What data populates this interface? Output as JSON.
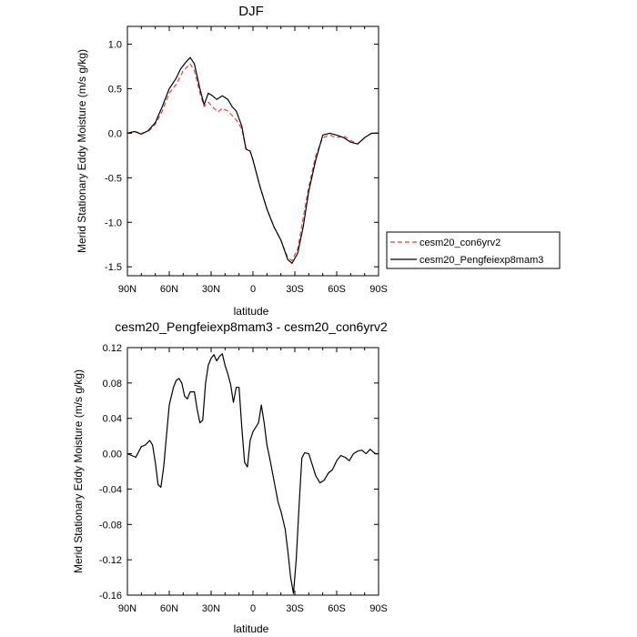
{
  "chart_data": [
    {
      "type": "line",
      "title": "DJF",
      "xlabel": "latitude",
      "ylabel": "Merid Stationary Eddy Moisture (m/s g/kg)",
      "xlim": [
        90,
        -90
      ],
      "ylim": [
        -1.6,
        1.2
      ],
      "xticks": [
        90,
        60,
        30,
        0,
        -30,
        -60,
        -90
      ],
      "xtick_labels": [
        "90N",
        "60N",
        "30N",
        "0",
        "30S",
        "60S",
        "90S"
      ],
      "yticks": [
        -1.5,
        -1.0,
        -0.5,
        0.0,
        0.5,
        1.0
      ],
      "ytick_labels": [
        "-1.5",
        "-1.0",
        "-0.5",
        "0.0",
        "0.5",
        "1.0"
      ],
      "grid": false,
      "legend": "right",
      "series": [
        {
          "name": "cesm20_con6yrv2",
          "color": "#e8413a",
          "dash": "dashed",
          "points": [
            [
              90,
              0.0
            ],
            [
              85,
              0.02
            ],
            [
              80,
              0.0
            ],
            [
              75,
              0.02
            ],
            [
              70,
              0.1
            ],
            [
              65,
              0.25
            ],
            [
              60,
              0.45
            ],
            [
              55,
              0.55
            ],
            [
              50,
              0.7
            ],
            [
              45,
              0.78
            ],
            [
              42,
              0.7
            ],
            [
              38,
              0.45
            ],
            [
              35,
              0.3
            ],
            [
              32,
              0.35
            ],
            [
              28,
              0.28
            ],
            [
              25,
              0.24
            ],
            [
              22,
              0.28
            ],
            [
              18,
              0.25
            ],
            [
              15,
              0.2
            ],
            [
              12,
              0.15
            ],
            [
              8,
              0.05
            ],
            [
              5,
              -0.17
            ],
            [
              2,
              -0.2
            ],
            [
              0,
              -0.3
            ],
            [
              -5,
              -0.6
            ],
            [
              -10,
              -0.85
            ],
            [
              -15,
              -1.05
            ],
            [
              -20,
              -1.2
            ],
            [
              -25,
              -1.4
            ],
            [
              -28,
              -1.43
            ],
            [
              -32,
              -1.3
            ],
            [
              -36,
              -0.95
            ],
            [
              -40,
              -0.6
            ],
            [
              -45,
              -0.25
            ],
            [
              -50,
              -0.05
            ],
            [
              -55,
              -0.02
            ],
            [
              -60,
              -0.05
            ],
            [
              -65,
              -0.03
            ],
            [
              -70,
              -0.08
            ],
            [
              -75,
              -0.12
            ],
            [
              -80,
              -0.05
            ],
            [
              -85,
              0.0
            ],
            [
              -90,
              0.0
            ]
          ]
        },
        {
          "name": "cesm20_Pengfeiexp8mam3",
          "color": "#000000",
          "dash": "solid",
          "points": [
            [
              90,
              0.0
            ],
            [
              85,
              0.02
            ],
            [
              80,
              -0.01
            ],
            [
              75,
              0.03
            ],
            [
              70,
              0.12
            ],
            [
              65,
              0.3
            ],
            [
              60,
              0.5
            ],
            [
              55,
              0.62
            ],
            [
              52,
              0.72
            ],
            [
              48,
              0.8
            ],
            [
              45,
              0.85
            ],
            [
              42,
              0.78
            ],
            [
              38,
              0.5
            ],
            [
              35,
              0.32
            ],
            [
              32,
              0.45
            ],
            [
              29,
              0.42
            ],
            [
              26,
              0.38
            ],
            [
              22,
              0.42
            ],
            [
              18,
              0.38
            ],
            [
              15,
              0.3
            ],
            [
              12,
              0.25
            ],
            [
              8,
              0.08
            ],
            [
              5,
              -0.18
            ],
            [
              2,
              -0.2
            ],
            [
              0,
              -0.3
            ],
            [
              -5,
              -0.6
            ],
            [
              -10,
              -0.85
            ],
            [
              -15,
              -1.05
            ],
            [
              -20,
              -1.2
            ],
            [
              -25,
              -1.42
            ],
            [
              -28,
              -1.46
            ],
            [
              -32,
              -1.35
            ],
            [
              -36,
              -1.05
            ],
            [
              -40,
              -0.65
            ],
            [
              -45,
              -0.3
            ],
            [
              -50,
              -0.02
            ],
            [
              -55,
              0.0
            ],
            [
              -60,
              -0.02
            ],
            [
              -65,
              -0.05
            ],
            [
              -70,
              -0.1
            ],
            [
              -75,
              -0.12
            ],
            [
              -80,
              -0.05
            ],
            [
              -85,
              0.0
            ],
            [
              -90,
              0.0
            ]
          ]
        }
      ]
    },
    {
      "type": "line",
      "title": "cesm20_Pengfeiexp8mam3 - cesm20_con6yrv2",
      "xlabel": "latitude",
      "ylabel": "Merid Stationary Eddy Moisture (m/s g/kg)",
      "xlim": [
        90,
        -90
      ],
      "ylim": [
        -0.16,
        0.12
      ],
      "xticks": [
        90,
        60,
        30,
        0,
        -30,
        -60,
        -90
      ],
      "xtick_labels": [
        "90N",
        "60N",
        "30N",
        "0",
        "30S",
        "60S",
        "90S"
      ],
      "yticks": [
        -0.16,
        -0.12,
        -0.08,
        -0.04,
        0.0,
        0.04,
        0.08,
        0.12
      ],
      "ytick_labels": [
        "-0.16",
        "-0.12",
        "-0.08",
        "-0.04",
        "0.00",
        "0.04",
        "0.08",
        "0.12"
      ],
      "grid": false,
      "series": [
        {
          "name": "",
          "color": "#000000",
          "dash": "solid",
          "points": [
            [
              90,
              0.0
            ],
            [
              87,
              -0.002
            ],
            [
              84,
              -0.004
            ],
            [
              80,
              0.008
            ],
            [
              77,
              0.01
            ],
            [
              74,
              0.015
            ],
            [
              72,
              0.01
            ],
            [
              70,
              -0.01
            ],
            [
              68,
              -0.035
            ],
            [
              66,
              -0.038
            ],
            [
              64,
              -0.015
            ],
            [
              62,
              0.02
            ],
            [
              60,
              0.055
            ],
            [
              57,
              0.075
            ],
            [
              55,
              0.083
            ],
            [
              53,
              0.085
            ],
            [
              51,
              0.08
            ],
            [
              49,
              0.065
            ],
            [
              47,
              0.062
            ],
            [
              45,
              0.07
            ],
            [
              42,
              0.07
            ],
            [
              40,
              0.05
            ],
            [
              38,
              0.035
            ],
            [
              36,
              0.038
            ],
            [
              34,
              0.08
            ],
            [
              32,
              0.1
            ],
            [
              30,
              0.108
            ],
            [
              28,
              0.112
            ],
            [
              26,
              0.105
            ],
            [
              24,
              0.11
            ],
            [
              22,
              0.113
            ],
            [
              20,
              0.1
            ],
            [
              18,
              0.09
            ],
            [
              16,
              0.078
            ],
            [
              14,
              0.058
            ],
            [
              12,
              0.075
            ],
            [
              10,
              0.075
            ],
            [
              8,
              0.03
            ],
            [
              6,
              -0.01
            ],
            [
              4,
              -0.015
            ],
            [
              2,
              0.015
            ],
            [
              0,
              0.025
            ],
            [
              -2,
              0.03
            ],
            [
              -4,
              0.035
            ],
            [
              -6,
              0.055
            ],
            [
              -8,
              0.035
            ],
            [
              -10,
              0.01
            ],
            [
              -12,
              -0.005
            ],
            [
              -15,
              -0.03
            ],
            [
              -18,
              -0.055
            ],
            [
              -20,
              -0.065
            ],
            [
              -23,
              -0.085
            ],
            [
              -25,
              -0.11
            ],
            [
              -27,
              -0.14
            ],
            [
              -29,
              -0.158
            ],
            [
              -31,
              -0.12
            ],
            [
              -33,
              -0.06
            ],
            [
              -35,
              -0.005
            ],
            [
              -37,
              0.001
            ],
            [
              -40,
              0.0
            ],
            [
              -42,
              -0.01
            ],
            [
              -45,
              -0.025
            ],
            [
              -48,
              -0.033
            ],
            [
              -51,
              -0.03
            ],
            [
              -54,
              -0.022
            ],
            [
              -57,
              -0.018
            ],
            [
              -60,
              -0.008
            ],
            [
              -63,
              -0.002
            ],
            [
              -66,
              -0.004
            ],
            [
              -69,
              -0.008
            ],
            [
              -72,
              0.0
            ],
            [
              -75,
              0.003
            ],
            [
              -78,
              0.004
            ],
            [
              -81,
              0.0
            ],
            [
              -84,
              0.005
            ],
            [
              -86,
              0.002
            ],
            [
              -88,
              0.0
            ],
            [
              -90,
              0.0
            ]
          ]
        }
      ]
    }
  ]
}
